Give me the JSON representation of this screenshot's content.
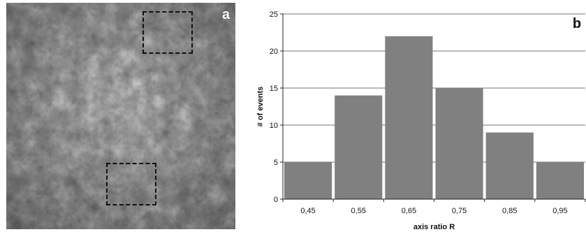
{
  "panel_a": {
    "letter": "a"
  },
  "chart_data": {
    "type": "bar",
    "panel_letter": "b",
    "categories": [
      "0,45",
      "0,55",
      "0,65",
      "0,75",
      "0,85",
      "0,95"
    ],
    "values": [
      5,
      14,
      22,
      15,
      9,
      5
    ],
    "xlabel": "axis ratio R",
    "ylabel": "# of events",
    "ylim": [
      0,
      25
    ],
    "yticks": [
      0,
      5,
      10,
      15,
      20,
      25
    ],
    "grid": true,
    "bar_color": "#808080"
  }
}
